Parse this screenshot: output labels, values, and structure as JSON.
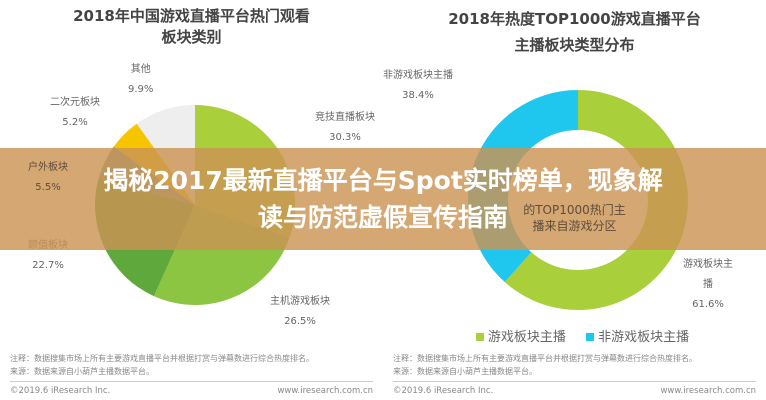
{
  "banner": {
    "line1": "揭秘2017最新直播平台与Spot实时榜单，现象解",
    "line2": "读与防范虚假宣传指南"
  },
  "chart_data": [
    {
      "type": "pie",
      "title": "2018年中国游戏直播平台热门观看板块类别",
      "title_lines": [
        "2018年中国游戏直播平台热门观看",
        "板块类别"
      ],
      "categories": [
        "竞技直播板块",
        "主机游戏板块",
        "颜值板块",
        "户外板块",
        "二次元板块",
        "其他"
      ],
      "values": [
        30.3,
        26.5,
        22.7,
        5.5,
        5.2,
        9.9
      ],
      "labels": [
        "30.3%",
        "26.5%",
        "22.7%",
        "5.5%",
        "5.2%",
        "9.9%"
      ],
      "colors": [
        "#a9cf3b",
        "#8cc541",
        "#5ea83c",
        "#7e9f8f",
        "#f6c500",
        "#eeeeee"
      ],
      "notes": [
        "注释：数据搜集市场上所有主要游戏直播平台并根据打赏与弹幕数进行综合热度排名。",
        "来源：数据来源自小葫芦主播数据平台。"
      ],
      "footer_left": "©2019.6 iResearch Inc.",
      "footer_right": "www.iresearch.com.cn"
    },
    {
      "type": "pie",
      "donut": true,
      "title": "2018年热度TOP1000游戏直播平台主播板块类型分布",
      "title_lines": [
        "2018年热度TOP1000游戏直播平台",
        "主播板块类型分布"
      ],
      "categories": [
        "游戏板块主播",
        "非游戏板块主播"
      ],
      "label_lines": [
        [
          "游戏板块主",
          "播"
        ],
        [
          "非游戏板块主播"
        ]
      ],
      "values": [
        61.6,
        38.4
      ],
      "labels": [
        "61.6%",
        "38.4%"
      ],
      "colors": [
        "#a9cf3b",
        "#1fc6ee"
      ],
      "center_text": [
        "的TOP1000热门主",
        "播来自游戏分区"
      ],
      "legend": "bottom",
      "notes": [
        "注释：数据搜集市场上所有主要游戏直播平台并根据打赏与弹幕数进行综合热度排名。",
        "来源：数据来源自小葫芦主播数据平台。"
      ],
      "footer_left": "©2019.6 iResearch Inc.",
      "footer_right": "www.iresearch.com.cn"
    }
  ]
}
